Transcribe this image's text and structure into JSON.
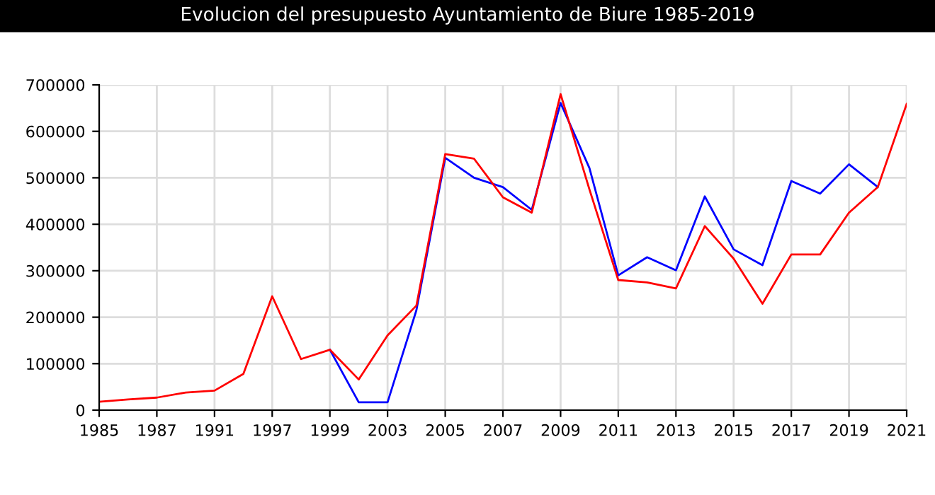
{
  "chart_data": {
    "type": "line",
    "title": "Evolucion del presupuesto Ayuntamiento de Biure 1985-2019",
    "categories": [
      "1985",
      null,
      "1987",
      null,
      "1991",
      null,
      "1997",
      null,
      "1999",
      null,
      "2003",
      null,
      "2005",
      null,
      "2007",
      null,
      "2009",
      null,
      "2011",
      null,
      "2013",
      null,
      "2015",
      null,
      "2017",
      null,
      "2019",
      null,
      "2021"
    ],
    "series": [
      {
        "color": "#0000ff",
        "values": [
          null,
          null,
          null,
          null,
          null,
          null,
          null,
          null,
          130000,
          17000,
          17000,
          215000,
          543000,
          500000,
          480000,
          431000,
          661000,
          521000,
          290000,
          329000,
          301000,
          460000,
          346000,
          312000,
          493000,
          466000,
          529000,
          480000,
          null
        ]
      },
      {
        "color": "#ff0000",
        "values": [
          18000,
          23000,
          27000,
          38000,
          42000,
          78000,
          245000,
          110000,
          130000,
          66000,
          161000,
          225000,
          551000,
          541000,
          458000,
          425000,
          680000,
          475000,
          280000,
          275000,
          262000,
          396000,
          326000,
          229000,
          335000,
          335000,
          425000,
          480000,
          659000
        ]
      }
    ],
    "ylim": [
      0,
      700000
    ],
    "yticks": [
      0,
      100000,
      200000,
      300000,
      400000,
      500000,
      600000,
      700000
    ],
    "grid": true,
    "legend": false,
    "marker": "none",
    "line_style": "solid"
  }
}
